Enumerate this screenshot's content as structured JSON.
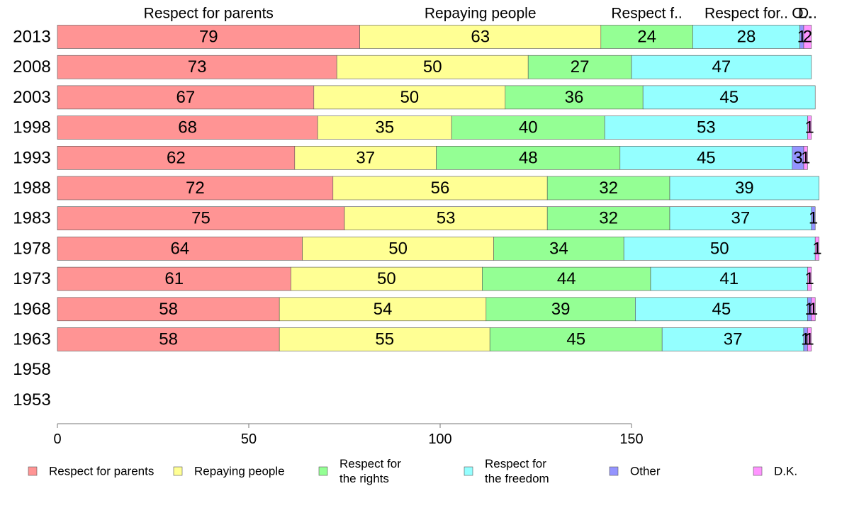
{
  "chart_data": {
    "type": "bar",
    "orientation": "horizontal",
    "stacked": true,
    "categories": [
      "2013",
      "2008",
      "2003",
      "1998",
      "1993",
      "1988",
      "1983",
      "1978",
      "1973",
      "1968",
      "1963",
      "1958",
      "1953"
    ],
    "series": [
      {
        "name": "Respect for parents",
        "legend": [
          "Respect for parents"
        ],
        "column_header": "Respect for parents",
        "color": "#ff9494",
        "values": [
          79,
          73,
          67,
          68,
          62,
          72,
          75,
          64,
          61,
          58,
          58,
          null,
          null
        ],
        "labels": [
          "79",
          "73",
          "67",
          "68",
          "62",
          "72",
          "75",
          "64",
          "61",
          "58",
          "58",
          "",
          ""
        ]
      },
      {
        "name": "Repaying people",
        "legend": [
          "Repaying people"
        ],
        "column_header": "Repaying people",
        "color": "#ffff94",
        "values": [
          63,
          50,
          50,
          35,
          37,
          56,
          53,
          50,
          50,
          54,
          55,
          null,
          null
        ],
        "labels": [
          "63",
          "50",
          "50",
          "35",
          "37",
          "56",
          "53",
          "50",
          "50",
          "54",
          "55",
          "",
          ""
        ]
      },
      {
        "name": "Respect for the rights",
        "legend": [
          "Respect for",
          "the rights"
        ],
        "column_header": "Respect f..",
        "color": "#94ff94",
        "values": [
          24,
          27,
          36,
          40,
          48,
          32,
          32,
          34,
          44,
          39,
          45,
          null,
          null
        ],
        "labels": [
          "24",
          "27",
          "36",
          "40",
          "48",
          "32",
          "32",
          "34",
          "44",
          "39",
          "45",
          "",
          ""
        ]
      },
      {
        "name": "Respect for the freedom",
        "legend": [
          "Respect for",
          "the freedom"
        ],
        "column_header": "Respect for..",
        "color": "#94ffff",
        "values": [
          28,
          47,
          45,
          53,
          45,
          39,
          37,
          50,
          41,
          45,
          37,
          null,
          null
        ],
        "labels": [
          "28",
          "47",
          "45",
          "53",
          "45",
          "39",
          "37",
          "50",
          "41",
          "45",
          "37",
          "",
          ""
        ]
      },
      {
        "name": "Other",
        "legend": [
          "Other"
        ],
        "column_header": "O..",
        "color": "#9494ff",
        "values": [
          1,
          0,
          0,
          0,
          3,
          0,
          1,
          0,
          0,
          1,
          1,
          null,
          null
        ],
        "labels": [
          "1",
          "",
          "",
          "",
          "3",
          "",
          "1",
          "",
          "",
          "1",
          "1",
          "",
          ""
        ]
      },
      {
        "name": "D.K.",
        "legend": [
          "D.K."
        ],
        "column_header": "D..",
        "color": "#ff94ff",
        "values": [
          2,
          0,
          0,
          1,
          1,
          0,
          0,
          1,
          1,
          1,
          1,
          null,
          null
        ],
        "labels": [
          "2",
          "",
          "",
          "1",
          "1",
          "",
          "",
          "1",
          "1",
          "1",
          "1",
          "",
          ""
        ]
      }
    ],
    "x_ticks": [
      "0",
      "50",
      "100",
      "150"
    ],
    "xlim": [
      0,
      200
    ],
    "xlabel": "",
    "ylabel": "",
    "title": "",
    "grid": false,
    "legend_position": "bottom"
  }
}
